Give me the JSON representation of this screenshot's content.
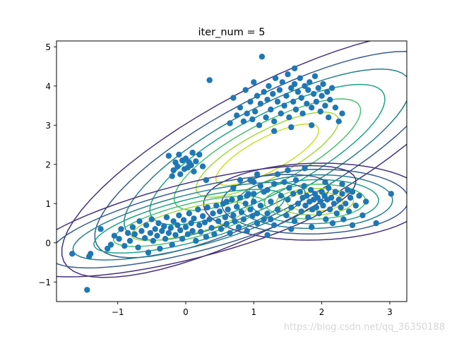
{
  "chart_data": {
    "type": "scatter",
    "title": "iter_num = 5",
    "xlabel": "",
    "ylabel": "",
    "xlim": [
      -1.9,
      3.25
    ],
    "ylim": [
      -1.5,
      5.15
    ],
    "xticks": [
      -1,
      0,
      1,
      2,
      3
    ],
    "xtick_labels": [
      "−1",
      "0",
      "1",
      "2",
      "3"
    ],
    "yticks": [
      -1,
      0,
      1,
      2,
      3,
      4,
      5
    ],
    "ytick_labels": [
      "−1",
      "0",
      "1",
      "2",
      "3",
      "4",
      "5"
    ],
    "grid": false,
    "point_color": "#1f77b4",
    "contour_colors": [
      "#46327e",
      "#365c8d",
      "#277f8e",
      "#1fa187",
      "#4ac16d",
      "#a0da39",
      "#c8e020"
    ],
    "contour_style": "viridis",
    "components": [
      {
        "center": [
          1.2,
          2.25
        ],
        "sd": [
          1.08,
          1.12
        ],
        "corr": 0.79,
        "weight": 1.0
      },
      {
        "center": [
          1.9,
          1.05
        ],
        "sd": [
          0.6,
          0.36
        ],
        "corr": 0.06,
        "weight": 0.95
      },
      {
        "center": [
          0.05,
          0.55
        ],
        "sd": [
          0.95,
          0.55
        ],
        "corr": 0.72,
        "weight": 0.85
      }
    ],
    "points": [
      [
        -1.67,
        -0.28
      ],
      [
        -1.45,
        -1.2
      ],
      [
        -1.4,
        -0.28
      ],
      [
        -1.42,
        -0.35
      ],
      [
        -1.25,
        0.35
      ],
      [
        -1.15,
        -0.15
      ],
      [
        -1.1,
        -0.05
      ],
      [
        -1.05,
        0.18
      ],
      [
        -0.98,
        0.1
      ],
      [
        -0.95,
        0.35
      ],
      [
        -0.9,
        -0.08
      ],
      [
        -0.85,
        0.25
      ],
      [
        -0.82,
        0.05
      ],
      [
        -0.78,
        0.4
      ],
      [
        -0.75,
        0.22
      ],
      [
        -0.7,
        -0.12
      ],
      [
        -0.68,
        0.55
      ],
      [
        -0.65,
        0.3
      ],
      [
        -0.6,
        0.12
      ],
      [
        -0.58,
        0.45
      ],
      [
        -0.55,
        -0.25
      ],
      [
        -0.52,
        0.25
      ],
      [
        -0.5,
        0.6
      ],
      [
        -0.48,
        0.05
      ],
      [
        -0.45,
        0.35
      ],
      [
        -0.42,
        0.18
      ],
      [
        -0.4,
        0.5
      ],
      [
        -0.38,
        -0.15
      ],
      [
        -0.35,
        0.3
      ],
      [
        -0.32,
        0.42
      ],
      [
        -0.3,
        0.1
      ],
      [
        -0.28,
        0.65
      ],
      [
        -0.25,
        0.25
      ],
      [
        -0.22,
        0.38
      ],
      [
        -0.2,
        -0.05
      ],
      [
        -0.18,
        0.55
      ],
      [
        -0.15,
        0.2
      ],
      [
        -0.12,
        0.45
      ],
      [
        -0.1,
        0.7
      ],
      [
        -0.08,
        0.32
      ],
      [
        -0.05,
        0.1
      ],
      [
        -0.03,
        0.58
      ],
      [
        0.0,
        0.4
      ],
      [
        0.03,
        0.22
      ],
      [
        0.05,
        0.75
      ],
      [
        0.08,
        0.5
      ],
      [
        0.1,
        0.3
      ],
      [
        0.12,
        0.62
      ],
      [
        0.15,
        0.05
      ],
      [
        0.18,
        0.85
      ],
      [
        0.2,
        0.45
      ],
      [
        0.22,
        0.28
      ],
      [
        0.25,
        0.68
      ],
      [
        0.28,
        0.52
      ],
      [
        0.3,
        0.15
      ],
      [
        0.32,
        0.9
      ],
      [
        0.35,
        0.6
      ],
      [
        0.38,
        0.38
      ],
      [
        0.4,
        0.75
      ],
      [
        0.42,
        0.22
      ],
      [
        0.45,
        0.95
      ],
      [
        0.48,
        0.55
      ],
      [
        0.5,
        0.8
      ],
      [
        0.52,
        0.35
      ],
      [
        0.55,
        1.0
      ],
      [
        0.58,
        0.65
      ],
      [
        0.6,
        0.48
      ],
      [
        0.62,
        0.85
      ],
      [
        0.65,
        0.25
      ],
      [
        0.68,
        1.1
      ],
      [
        0.7,
        0.7
      ],
      [
        0.72,
        0.55
      ],
      [
        0.75,
        0.92
      ],
      [
        0.78,
        0.4
      ],
      [
        0.8,
        1.15
      ],
      [
        0.82,
        0.78
      ],
      [
        0.85,
        0.6
      ],
      [
        0.88,
        1.0
      ],
      [
        0.9,
        0.3
      ],
      [
        0.92,
        1.25
      ],
      [
        0.95,
        0.85
      ],
      [
        0.98,
        0.68
      ],
      [
        1.0,
        1.05
      ],
      [
        1.05,
        0.5
      ],
      [
        1.1,
        0.95
      ],
      [
        1.15,
        1.3
      ],
      [
        1.2,
        0.75
      ],
      [
        1.25,
        0.6
      ],
      [
        -0.25,
        2.22
      ],
      [
        -0.2,
        1.7
      ],
      [
        -0.18,
        1.85
      ],
      [
        -0.15,
        2.05
      ],
      [
        -0.12,
        1.95
      ],
      [
        -0.1,
        2.25
      ],
      [
        -0.08,
        1.75
      ],
      [
        -0.05,
        2.1
      ],
      [
        -0.02,
        1.88
      ],
      [
        0.0,
        2.15
      ],
      [
        0.03,
        1.92
      ],
      [
        0.05,
        2.05
      ],
      [
        0.08,
        1.98
      ],
      [
        0.1,
        2.3
      ],
      [
        0.12,
        1.82
      ],
      [
        0.15,
        2.08
      ],
      [
        0.2,
        2.25
      ],
      [
        0.25,
        1.95
      ],
      [
        0.3,
        1.6
      ],
      [
        0.65,
        3.05
      ],
      [
        0.7,
        3.7
      ],
      [
        0.75,
        3.25
      ],
      [
        0.8,
        3.45
      ],
      [
        0.85,
        3.1
      ],
      [
        0.88,
        3.9
      ],
      [
        0.9,
        3.3
      ],
      [
        0.95,
        3.6
      ],
      [
        0.98,
        3.15
      ],
      [
        1.0,
        4.1
      ],
      [
        1.02,
        3.35
      ],
      [
        1.05,
        3.75
      ],
      [
        1.08,
        3.0
      ],
      [
        1.1,
        3.55
      ],
      [
        1.12,
        4.75
      ],
      [
        1.15,
        3.85
      ],
      [
        1.18,
        3.2
      ],
      [
        1.2,
        3.65
      ],
      [
        1.22,
        4.0
      ],
      [
        1.25,
        3.4
      ],
      [
        1.28,
        3.8
      ],
      [
        1.3,
        3.1
      ],
      [
        1.32,
        4.2
      ],
      [
        1.35,
        3.6
      ],
      [
        1.38,
        3.9
      ],
      [
        1.4,
        3.3
      ],
      [
        1.42,
        4.1
      ],
      [
        1.45,
        3.5
      ],
      [
        1.48,
        3.75
      ],
      [
        1.5,
        4.3
      ],
      [
        1.52,
        3.2
      ],
      [
        1.55,
        3.95
      ],
      [
        1.58,
        3.6
      ],
      [
        1.6,
        4.05
      ],
      [
        1.62,
        3.4
      ],
      [
        1.65,
        3.85
      ],
      [
        1.68,
        4.2
      ],
      [
        1.7,
        3.7
      ],
      [
        1.72,
        3.3
      ],
      [
        1.75,
        4.0
      ],
      [
        1.78,
        3.55
      ],
      [
        1.8,
        3.9
      ],
      [
        1.82,
        4.1
      ],
      [
        1.85,
        3.45
      ],
      [
        1.88,
        3.8
      ],
      [
        1.9,
        4.25
      ],
      [
        1.92,
        3.6
      ],
      [
        1.95,
        3.95
      ],
      [
        1.98,
        3.35
      ],
      [
        2.0,
        3.75
      ],
      [
        2.02,
        4.05
      ],
      [
        2.05,
        3.5
      ],
      [
        2.08,
        3.85
      ],
      [
        2.1,
        3.2
      ],
      [
        2.12,
        3.65
      ],
      [
        2.15,
        3.95
      ],
      [
        2.2,
        3.45
      ],
      [
        2.25,
        3.1
      ],
      [
        2.3,
        3.3
      ],
      [
        0.35,
        4.15
      ],
      [
        1.6,
        4.45
      ],
      [
        1.85,
        3.0
      ],
      [
        1.55,
        2.95
      ],
      [
        1.3,
        2.85
      ],
      [
        1.0,
        1.55
      ],
      [
        1.05,
        1.75
      ],
      [
        0.6,
        1.05
      ],
      [
        0.7,
        1.4
      ],
      [
        0.8,
        1.6
      ],
      [
        0.9,
        1.2
      ],
      [
        1.0,
        1.25
      ],
      [
        1.1,
        1.45
      ],
      [
        1.15,
        0.6
      ],
      [
        1.2,
        1.35
      ],
      [
        1.25,
        1.05
      ],
      [
        1.3,
        1.5
      ],
      [
        1.35,
        0.85
      ],
      [
        1.4,
        1.2
      ],
      [
        1.45,
        1.55
      ],
      [
        1.48,
        0.7
      ],
      [
        1.5,
        1.1
      ],
      [
        1.52,
        1.4
      ],
      [
        1.55,
        0.9
      ],
      [
        1.58,
        1.25
      ],
      [
        1.6,
        0.55
      ],
      [
        1.62,
        1.6
      ],
      [
        1.65,
        1.0
      ],
      [
        1.68,
        1.3
      ],
      [
        1.7,
        0.8
      ],
      [
        1.72,
        1.15
      ],
      [
        1.74,
        1.45
      ],
      [
        1.76,
        0.95
      ],
      [
        1.78,
        1.2
      ],
      [
        1.8,
        0.65
      ],
      [
        1.82,
        1.05
      ],
      [
        1.84,
        1.35
      ],
      [
        1.86,
        0.85
      ],
      [
        1.88,
        1.1
      ],
      [
        1.9,
        1.25
      ],
      [
        1.92,
        0.9
      ],
      [
        1.94,
        1.15
      ],
      [
        1.96,
        0.75
      ],
      [
        1.98,
        1.05
      ],
      [
        2.0,
        1.3
      ],
      [
        2.02,
        0.95
      ],
      [
        2.04,
        1.2
      ],
      [
        2.06,
        0.6
      ],
      [
        2.08,
        1.1
      ],
      [
        2.1,
        1.4
      ],
      [
        2.12,
        0.85
      ],
      [
        2.14,
        1.15
      ],
      [
        2.16,
        0.5
      ],
      [
        2.18,
        1.0
      ],
      [
        2.2,
        1.3
      ],
      [
        2.22,
        0.75
      ],
      [
        2.25,
        1.1
      ],
      [
        2.28,
        0.9
      ],
      [
        2.3,
        1.25
      ],
      [
        2.32,
        0.6
      ],
      [
        2.35,
        1.0
      ],
      [
        2.38,
        1.35
      ],
      [
        2.4,
        0.8
      ],
      [
        2.42,
        1.15
      ],
      [
        2.45,
        0.45
      ],
      [
        2.5,
        0.95
      ],
      [
        2.55,
        1.2
      ],
      [
        2.6,
        0.7
      ],
      [
        2.65,
        1.05
      ],
      [
        2.8,
        0.5
      ],
      [
        3.02,
        1.25
      ],
      [
        2.45,
        1.3
      ],
      [
        2.3,
        1.5
      ],
      [
        1.85,
        0.4
      ],
      [
        1.55,
        0.35
      ],
      [
        1.3,
        0.45
      ],
      [
        1.2,
        0.2
      ],
      [
        1.05,
        0.75
      ],
      [
        0.95,
        1.6
      ],
      [
        1.35,
        1.75
      ],
      [
        1.5,
        1.85
      ],
      [
        1.75,
        1.9
      ],
      [
        2.05,
        1.55
      ]
    ]
  },
  "watermark": "https://blog.csdn.net/qq_36350188"
}
